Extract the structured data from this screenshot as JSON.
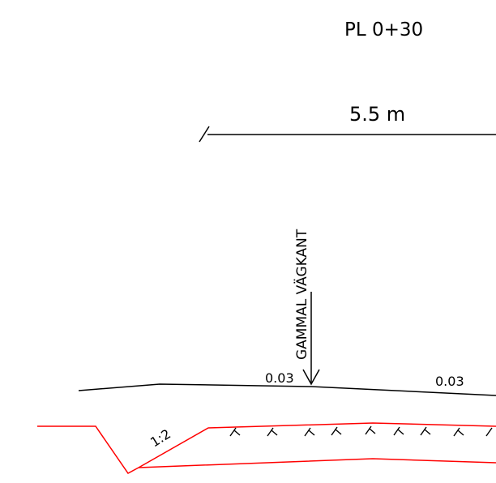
{
  "drawing": {
    "station_label": "PL  0+30",
    "width_label": "5.5  m",
    "old_edge_label": "GAMMAL  VÄGKANT",
    "slope_left": "0.03",
    "slope_right": "0.03",
    "ditch_slope": "1:2"
  },
  "colors": {
    "line": "#000000",
    "design": "#ff0000"
  }
}
